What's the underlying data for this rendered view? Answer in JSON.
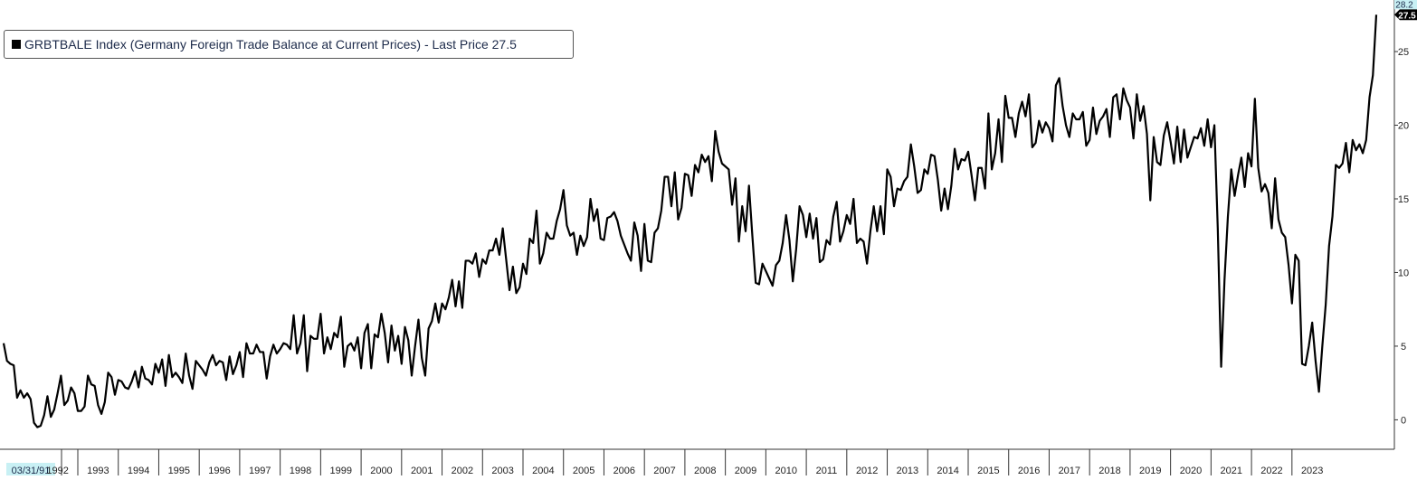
{
  "legend": {
    "label": "GRBTBALE Index (Germany Foreign Trade Balance at Current Prices) - Last Price 27.5"
  },
  "badges": {
    "last_price": "27.5",
    "high": "28.2"
  },
  "colors": {
    "line": "#000000",
    "badge_fill": "#000000",
    "badge_text": "#ffffff",
    "high_badge_fill": "#c8f0f4",
    "date_label_fill": "#c8f0f4",
    "axis": "#333333"
  },
  "chart_data": {
    "type": "line",
    "title": "GRBTBALE Index (Germany Foreign Trade Balance at Current Prices) - Last Price 27.5",
    "xlabel": "",
    "ylabel": "",
    "start_label": "03/31/91",
    "year_labels": [
      "1992",
      "1993",
      "1994",
      "1995",
      "1996",
      "1997",
      "1998",
      "1999",
      "2000",
      "2001",
      "2002",
      "2003",
      "2004",
      "2005",
      "2006",
      "2007",
      "2008",
      "2009",
      "2010",
      "2011",
      "2012",
      "2013",
      "2014",
      "2015",
      "2016",
      "2017",
      "2018",
      "2019",
      "2020",
      "2021",
      "2022",
      "2023"
    ],
    "y_ticks": [
      "0",
      "5",
      "10",
      "15",
      "20",
      "25"
    ],
    "ylim": [
      -2.0,
      28.5
    ],
    "grid": false,
    "y_axis_side": "right",
    "legend_position": "top-left",
    "series": [
      {
        "x_start": "1991-03",
        "frequency": "monthly",
        "values": [
          5.2,
          4.0,
          3.8,
          3.7,
          1.5,
          2.0,
          1.5,
          1.8,
          1.4,
          -0.2,
          -0.5,
          -0.4,
          0.3,
          1.6,
          0.2,
          0.7,
          1.8,
          3.0,
          1.0,
          1.3,
          2.2,
          1.8,
          0.6,
          0.6,
          0.9,
          3.0,
          2.4,
          2.3,
          1.0,
          0.4,
          1.2,
          3.2,
          2.9,
          1.7,
          2.7,
          2.6,
          2.2,
          2.1,
          2.6,
          3.3,
          2.2,
          3.6,
          2.8,
          2.7,
          2.4,
          3.8,
          3.2,
          4.1,
          2.3,
          4.4,
          2.9,
          3.2,
          2.9,
          2.5,
          4.5,
          3.0,
          2.1,
          4.0,
          3.7,
          3.4,
          3.0,
          3.9,
          4.4,
          3.7,
          4.0,
          3.9,
          2.7,
          4.3,
          3.1,
          3.7,
          4.6,
          2.9,
          5.2,
          4.5,
          4.5,
          5.1,
          4.6,
          4.6,
          2.8,
          4.3,
          5.1,
          4.5,
          4.8,
          5.2,
          5.1,
          4.8,
          7.1,
          4.5,
          5.2,
          7.1,
          3.3,
          5.7,
          5.5,
          5.5,
          7.2,
          4.5,
          5.6,
          4.8,
          5.9,
          5.6,
          7.0,
          3.6,
          5.0,
          5.2,
          4.7,
          5.6,
          3.5,
          5.9,
          6.5,
          3.5,
          5.8,
          5.6,
          7.2,
          5.9,
          3.9,
          6.4,
          4.7,
          5.7,
          3.8,
          6.3,
          5.4,
          3.0,
          5.0,
          6.8,
          4.2,
          3.0,
          6.2,
          6.7,
          7.9,
          6.6,
          7.9,
          7.5,
          8.3,
          9.5,
          7.7,
          9.4,
          7.6,
          10.8,
          10.8,
          10.6,
          11.3,
          9.7,
          10.9,
          10.6,
          11.5,
          11.5,
          12.3,
          11.2,
          13.0,
          10.9,
          8.8,
          10.4,
          8.6,
          9.0,
          10.6,
          9.9,
          12.3,
          12.0,
          14.2,
          10.6,
          11.3,
          12.7,
          12.3,
          12.3,
          13.5,
          14.3,
          15.6,
          13.2,
          12.5,
          12.7,
          11.2,
          12.5,
          11.8,
          12.4,
          15.0,
          13.5,
          14.3,
          12.3,
          12.2,
          13.7,
          13.8,
          14.1,
          13.5,
          12.5,
          11.9,
          11.3,
          10.8,
          13.4,
          12.5,
          10.1,
          13.3,
          10.8,
          10.7,
          12.7,
          13.0,
          14.2,
          16.5,
          16.5,
          14.5,
          16.8,
          13.6,
          14.4,
          16.7,
          16.6,
          15.2,
          17.3,
          16.8,
          18.0,
          17.5,
          17.9,
          16.2,
          19.6,
          18.2,
          17.4,
          17.2,
          17.0,
          14.6,
          16.4,
          12.1,
          14.5,
          12.8,
          15.9,
          12.5,
          9.3,
          9.2,
          10.6,
          10.1,
          9.6,
          9.1,
          10.5,
          10.8,
          12.0,
          13.9,
          12.2,
          9.4,
          11.6,
          14.5,
          13.9,
          12.4,
          14.0,
          12.3,
          13.7,
          10.7,
          10.9,
          12.2,
          11.9,
          13.8,
          14.8,
          12.1,
          12.8,
          13.9,
          13.3,
          15.0,
          12.0,
          12.3,
          12.1,
          10.6,
          12.8,
          14.5,
          12.8,
          14.5,
          12.6,
          17.0,
          16.5,
          14.5,
          15.7,
          15.6,
          16.2,
          16.5,
          18.7,
          17.2,
          15.4,
          15.6,
          17.0,
          16.7,
          18.0,
          17.9,
          16.3,
          14.2,
          15.7,
          14.3,
          15.9,
          18.4,
          17.0,
          17.7,
          17.6,
          18.2,
          16.6,
          14.9,
          17.1,
          17.1,
          15.7,
          20.8,
          17.0,
          18.1,
          20.4,
          17.5,
          22.0,
          20.5,
          20.5,
          19.2,
          20.8,
          21.6,
          20.6,
          22.1,
          18.5,
          18.8,
          20.3,
          19.5,
          20.2,
          19.8,
          18.9,
          22.7,
          23.2,
          21.3,
          20.0,
          19.2,
          20.8,
          20.4,
          20.4,
          20.9,
          18.6,
          19.0,
          21.2,
          19.4,
          20.3,
          20.6,
          21.1,
          19.2,
          21.9,
          22.1,
          20.4,
          22.5,
          21.7,
          21.2,
          19.1,
          22.1,
          20.3,
          21.3,
          19.4,
          14.9,
          19.2,
          17.5,
          17.3,
          19.3,
          20.2,
          18.9,
          17.4,
          19.9,
          17.5,
          19.7,
          17.8,
          18.5,
          19.2,
          19.1,
          19.8,
          18.6,
          20.4,
          18.5,
          20.0,
          13.0,
          3.6,
          9.5,
          13.8,
          17.0,
          15.2,
          16.6,
          17.8,
          15.8,
          18.1,
          17.2,
          21.8,
          17.1,
          15.5,
          16.0,
          15.4,
          13.0,
          16.4,
          13.6,
          12.7,
          12.4,
          10.5,
          7.9,
          11.2,
          10.8,
          3.8,
          3.7,
          5.0,
          6.6,
          4.0,
          1.9,
          5.0,
          7.8,
          11.8,
          13.8,
          17.3,
          17.1,
          17.4,
          18.8,
          16.8,
          19.0,
          18.3,
          18.7,
          18.1,
          19.0,
          21.9,
          23.4,
          27.5
        ]
      }
    ]
  }
}
